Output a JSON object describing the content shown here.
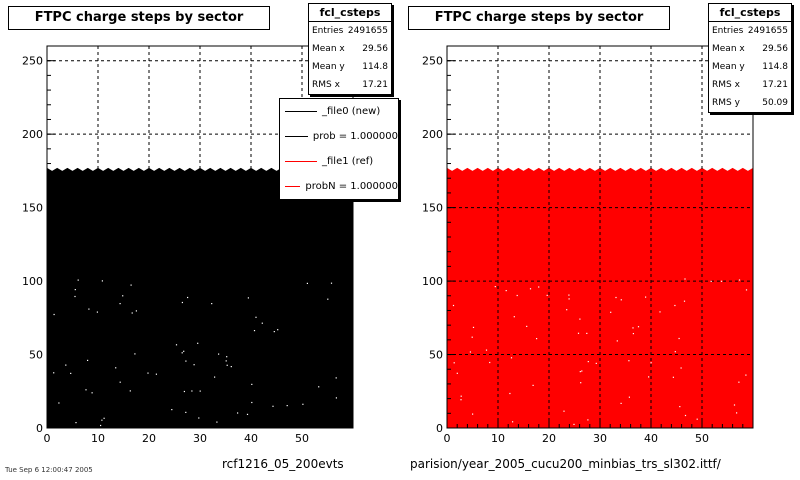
{
  "chart_data": [
    {
      "type": "scatter",
      "title": "FTPC charge steps by sector",
      "xlim": [
        0,
        60
      ],
      "ylim": [
        0,
        260
      ],
      "xticks": [
        0,
        10,
        20,
        30,
        40,
        50
      ],
      "yticks": [
        0,
        50,
        100,
        150,
        200,
        250
      ],
      "grid": true,
      "fill_top": 176,
      "color": "#000000",
      "stats": {
        "name": "fcl_csteps",
        "rows": [
          {
            "label": "Entries",
            "value": "2491655"
          },
          {
            "label": "Mean x",
            "value": "29.56"
          },
          {
            "label": "Mean y",
            "value": "114.8"
          },
          {
            "label": "RMS x",
            "value": "17.21"
          }
        ]
      },
      "legend": {
        "placement": "top-right",
        "entries": [
          {
            "text": "_file0 (new)",
            "color": "#000000"
          },
          {
            "text": "prob = 1.000000",
            "color": "#000000"
          },
          {
            "text": "_file1 (ref)",
            "color": "#ff0000"
          },
          {
            "text": "probN = 1.000000",
            "color": "#ff0000"
          }
        ]
      },
      "footer": "rcf1216_05_200evts"
    },
    {
      "type": "scatter",
      "title": "FTPC charge steps by sector",
      "xlim": [
        0,
        60
      ],
      "ylim": [
        0,
        260
      ],
      "xticks": [
        0,
        10,
        20,
        30,
        40,
        50
      ],
      "yticks": [
        0,
        50,
        100,
        150,
        200,
        250
      ],
      "grid": true,
      "fill_top": 176,
      "color": "#ff0000",
      "stats": {
        "name": "fcl_csteps",
        "rows": [
          {
            "label": "Entries",
            "value": "2491655"
          },
          {
            "label": "Mean x",
            "value": "29.56"
          },
          {
            "label": "Mean y",
            "value": "114.8"
          },
          {
            "label": "RMS x",
            "value": "17.21"
          },
          {
            "label": "RMS y",
            "value": "50.09"
          }
        ]
      },
      "footer": "parision/year_2005_cucu200_minbias_trs_sl302.ittf/"
    }
  ],
  "stamp": "Tue Sep 6 12:00:47 2005"
}
